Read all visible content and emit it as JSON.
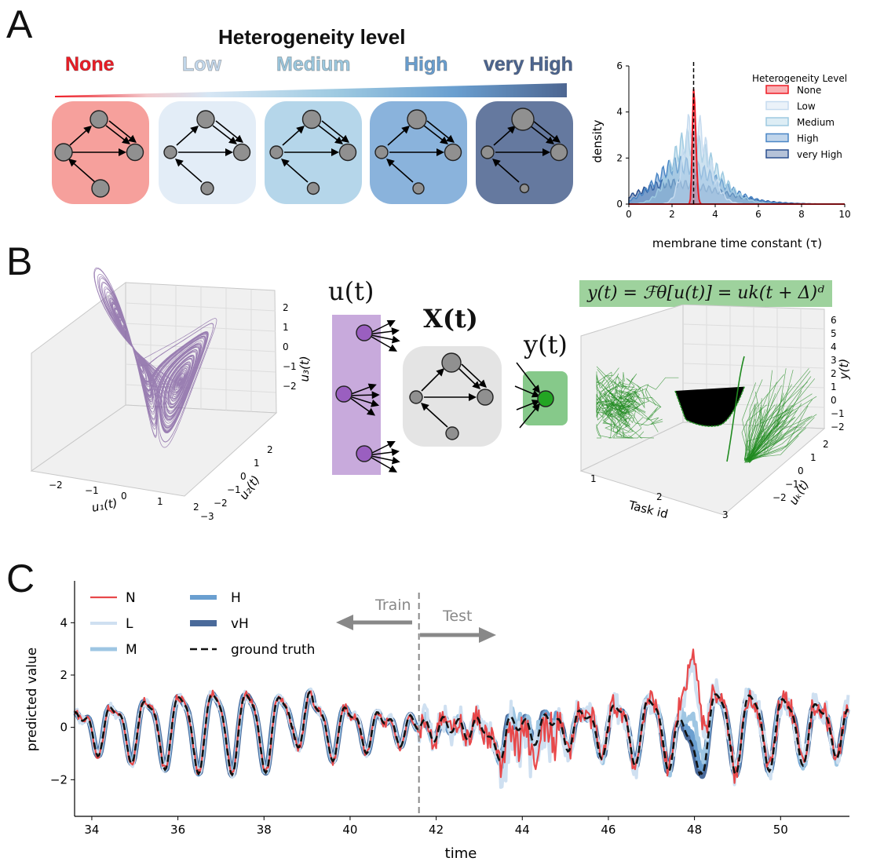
{
  "panels": {
    "a": "A",
    "b": "B",
    "c": "C"
  },
  "panel_a": {
    "title": "Heterogeneity level",
    "levels": [
      {
        "label": "None",
        "color": "#ee1c25",
        "tile": "#f6a09c"
      },
      {
        "label": "Low",
        "color": "#c6dbef",
        "tile": "#e3edf7"
      },
      {
        "label": "Medium",
        "color": "#9ecae1",
        "tile": "#b5d6ea"
      },
      {
        "label": "High",
        "color": "#6a9fd0",
        "tile": "#8ab3dc"
      },
      {
        "label": "very High",
        "color": "#4d6691",
        "tile": "#65799f"
      }
    ]
  },
  "chart_data": [
    {
      "type": "area",
      "xlabel": "membrane time constant (τ)",
      "ylabel": "density",
      "xlim": [
        0,
        10
      ],
      "ylim": [
        0,
        6
      ],
      "xticks": [
        "0",
        "2",
        "4",
        "6",
        "8",
        "10"
      ],
      "yticks": [
        "0",
        "2",
        "4",
        "6"
      ],
      "legend_title": "Heterogeneity Level",
      "legend_loc": "top-right",
      "vline_x": 3.0,
      "series": [
        {
          "name": "None",
          "color": "#ee1c25",
          "mu": 3.0,
          "sigma": 0.08,
          "peak": 5.0
        },
        {
          "name": "Low",
          "color": "#c6dbef",
          "mu": 2.95,
          "sigma": 0.55,
          "peak": 4.0
        },
        {
          "name": "Medium",
          "color": "#9ecae1",
          "mu": 2.7,
          "sigma": 1.0,
          "peak": 3.0
        },
        {
          "name": "High",
          "color": "#4a86c5",
          "mu": 2.3,
          "sigma": 1.4,
          "peak": 1.9
        },
        {
          "name": "very High",
          "color": "#2a4f8f",
          "mu": 1.9,
          "sigma": 1.8,
          "peak": 1.0
        }
      ]
    },
    {
      "type": "line",
      "xlabel": "time",
      "ylabel": "predicted value",
      "xlim": [
        33.6,
        51.6
      ],
      "ylim": [
        -3.4,
        5.6
      ],
      "xticks": [
        "34",
        "36",
        "38",
        "40",
        "42",
        "44",
        "46",
        "48",
        "50"
      ],
      "yticks": [
        "−2",
        "0",
        "2",
        "4"
      ],
      "split_x": 41.6,
      "legend_loc": "top-left",
      "series": [
        {
          "name": "N",
          "color": "#e8484a"
        },
        {
          "name": "L",
          "color": "#cfe0f1"
        },
        {
          "name": "M",
          "color": "#9ec6e3"
        },
        {
          "name": "H",
          "color": "#6a9fd0"
        },
        {
          "name": "vH",
          "color": "#4a6a9a"
        },
        {
          "name": "ground truth",
          "color": "#111111"
        }
      ]
    }
  ],
  "panel_b": {
    "u_label": "u(t)",
    "x_label": "X(t)",
    "y_label": "y(t)",
    "equation": "y(t) = ℱθ[u(t)] = uk(t + Δ)ᵈ",
    "left3d": {
      "xlabel": "u₁(t)",
      "ylabel": "u₂(t)",
      "zlabel": "u₃(t)",
      "xticks": [
        "−2",
        "−1",
        "0",
        "1",
        "2"
      ],
      "yticks": [
        "2",
        "1",
        "0",
        "−1",
        "−2",
        "−3"
      ],
      "zticks": [
        "2",
        "1",
        "0",
        "−1",
        "−2"
      ],
      "color": "#7d5a9e"
    },
    "right3d": {
      "xlabel": "Task id",
      "ylabel": "uₖ(t)",
      "zlabel": "y(t)",
      "xticks": [
        "1",
        "2",
        "3"
      ],
      "yticks": [
        "2",
        "1",
        "0",
        "−1",
        "−2"
      ],
      "zticks": [
        "6",
        "5",
        "4",
        "3",
        "2",
        "1",
        "0",
        "−1",
        "−2"
      ],
      "color": "#1f8a1f"
    }
  },
  "panel_c": {
    "train": "Train",
    "test": "Test"
  }
}
